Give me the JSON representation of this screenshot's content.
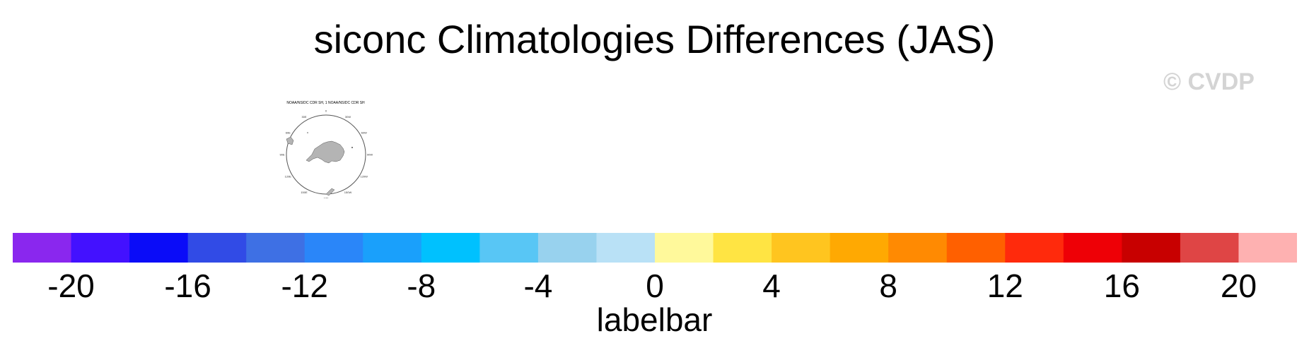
{
  "title": "siconc Climatologies Differences (JAS)",
  "watermark": {
    "text": "© CVDP",
    "color": "#d4d4d4"
  },
  "panel": {
    "caption": "NOAA/NSIDC CDR SH, 1 NOAA/NSIDC CDR SH",
    "land_color": "#b4b4b4",
    "ocean_color": "#ffffff",
    "outline_color": "#555555",
    "projection": "south-polar-stereographic",
    "longitude_labels": [
      "0",
      "30E",
      "60E",
      "90E",
      "120E",
      "150E",
      "180",
      "150W",
      "120W",
      "90W",
      "60W",
      "30W"
    ]
  },
  "labelbar": {
    "title": "labelbar",
    "tick_labels": [
      "-20",
      "-16",
      "-12",
      "-8",
      "-4",
      "0",
      "4",
      "8",
      "12",
      "16",
      "20"
    ],
    "tick_values": [
      -20,
      -16,
      -12,
      -8,
      -4,
      0,
      4,
      8,
      12,
      16,
      20
    ],
    "range": [
      -22,
      22
    ],
    "colors": [
      "#8a27ee",
      "#4311ff",
      "#0a0cf8",
      "#314be6",
      "#3e70e4",
      "#2a86f9",
      "#1aa0fb",
      "#00c1fe",
      "#58c6f5",
      "#98d2ee",
      "#b9e1f6",
      "#fff99b",
      "#ffe443",
      "#ffc51f",
      "#ffa902",
      "#ff8a02",
      "#ff6000",
      "#ff2a0c",
      "#ee0006",
      "#c80000",
      "#df4545",
      "#feb1b1"
    ]
  }
}
